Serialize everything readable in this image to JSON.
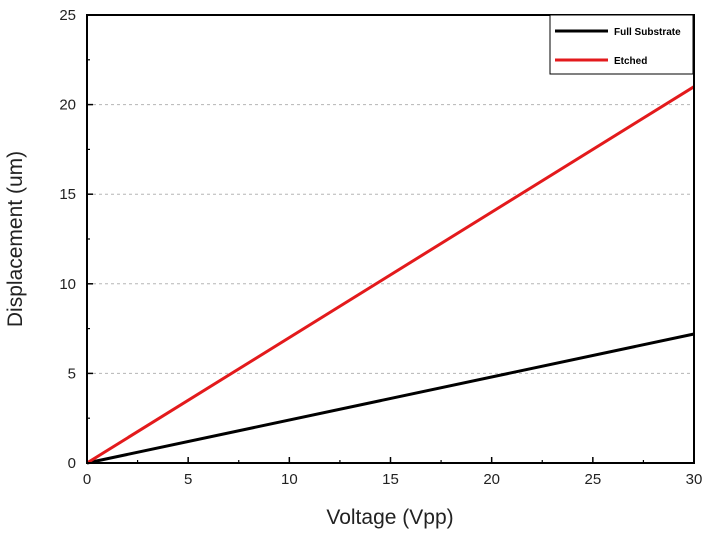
{
  "chart_data": {
    "type": "line",
    "title": "",
    "xlabel": "Voltage (Vpp)",
    "ylabel": "Displacement (um)",
    "xlim": [
      0,
      30
    ],
    "ylim": [
      0,
      25
    ],
    "xticks": [
      0,
      5,
      10,
      15,
      20,
      25,
      30
    ],
    "yticks": [
      0,
      5,
      10,
      15,
      20,
      25
    ],
    "grid": "horizontal-dashed",
    "legend_position": "top-right",
    "series": [
      {
        "name": "Full Substrate",
        "color": "#000000",
        "x": [
          0,
          30
        ],
        "y": [
          0,
          7.2
        ]
      },
      {
        "name": "Etched",
        "color": "#e31a1c",
        "x": [
          0,
          30
        ],
        "y": [
          0,
          21
        ]
      }
    ]
  }
}
